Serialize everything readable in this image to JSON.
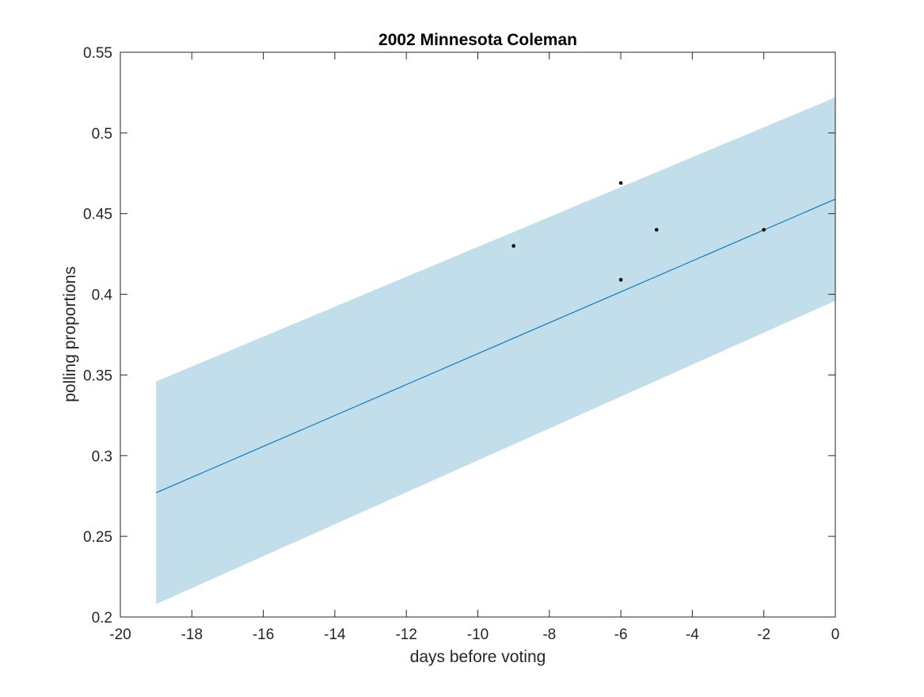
{
  "chart_data": {
    "type": "line",
    "title": "2002 Minnesota Coleman",
    "xlabel": "days before voting",
    "ylabel": "polling proportions",
    "xlim": [
      -20,
      0
    ],
    "ylim": [
      0.2,
      0.55
    ],
    "xticks": [
      -20,
      -18,
      -16,
      -14,
      -12,
      -10,
      -8,
      -6,
      -4,
      -2,
      0
    ],
    "yticks": [
      0.2,
      0.25,
      0.3,
      0.35,
      0.4,
      0.45,
      0.5,
      0.55
    ],
    "xtick_labels": [
      "-20",
      "-18",
      "-16",
      "-14",
      "-12",
      "-10",
      "-8",
      "-6",
      "-4",
      "-2",
      "0"
    ],
    "ytick_labels": [
      "0.2",
      "0.25",
      "0.3",
      "0.35",
      "0.4",
      "0.45",
      "0.5",
      "0.55"
    ],
    "grid": false,
    "band": {
      "x": [
        -19,
        0
      ],
      "lower": [
        0.208,
        0.396
      ],
      "upper": [
        0.346,
        0.522
      ],
      "color": "#c2deeb"
    },
    "fit_line": {
      "x": [
        -19,
        0
      ],
      "y": [
        0.277,
        0.459
      ],
      "color": "#0072bd"
    },
    "points": {
      "x": [
        -9,
        -6,
        -6,
        -5,
        -2
      ],
      "y": [
        0.43,
        0.469,
        0.409,
        0.44,
        0.44
      ],
      "color": "#000000"
    }
  }
}
